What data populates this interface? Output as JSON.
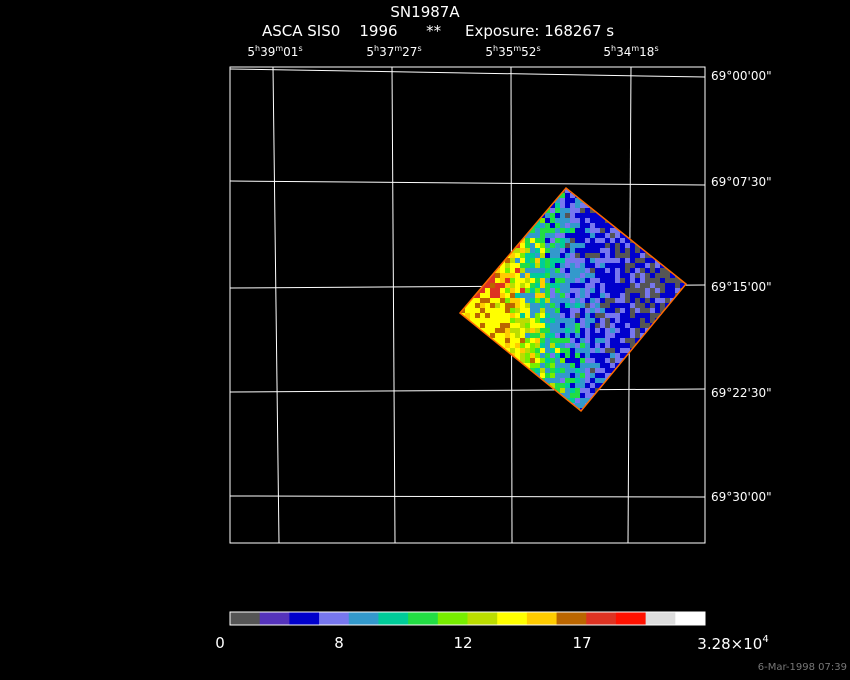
{
  "header": {
    "title": "SN1987A",
    "subtitle": "ASCA SIS0    1996      **     Exposure: 168267 s"
  },
  "axes": {
    "ra_ticks": [
      {
        "h": "5",
        "m": "39",
        "s": "01"
      },
      {
        "h": "5",
        "m": "37",
        "s": "27"
      },
      {
        "h": "5",
        "m": "35",
        "s": "52"
      },
      {
        "h": "5",
        "m": "34",
        "s": "18"
      }
    ],
    "dec_ticks": [
      "69°00'00\"",
      "69°07'30\"",
      "69°15'00\"",
      "69°22'30\"",
      "69°30'00\""
    ]
  },
  "colorbar": {
    "colors": [
      "#555555",
      "#5533bb",
      "#0000cc",
      "#7777ee",
      "#3399cc",
      "#00cc99",
      "#22dd44",
      "#77ee00",
      "#bbdd00",
      "#ffff00",
      "#ffcc00",
      "#bb6600",
      "#dd3322",
      "#ff1100",
      "#dddddd",
      "#ffffff"
    ],
    "tick_labels": [
      {
        "text": "0",
        "frac": 0.0
      },
      {
        "text": "8",
        "frac": 0.25
      },
      {
        "text": "12",
        "frac": 0.5
      },
      {
        "text": "17",
        "frac": 0.75
      }
    ],
    "max_label": {
      "base": "3.28×10",
      "exp": "4"
    }
  },
  "footer": {
    "timestamp": "6-Mar-1998 07:39"
  }
}
